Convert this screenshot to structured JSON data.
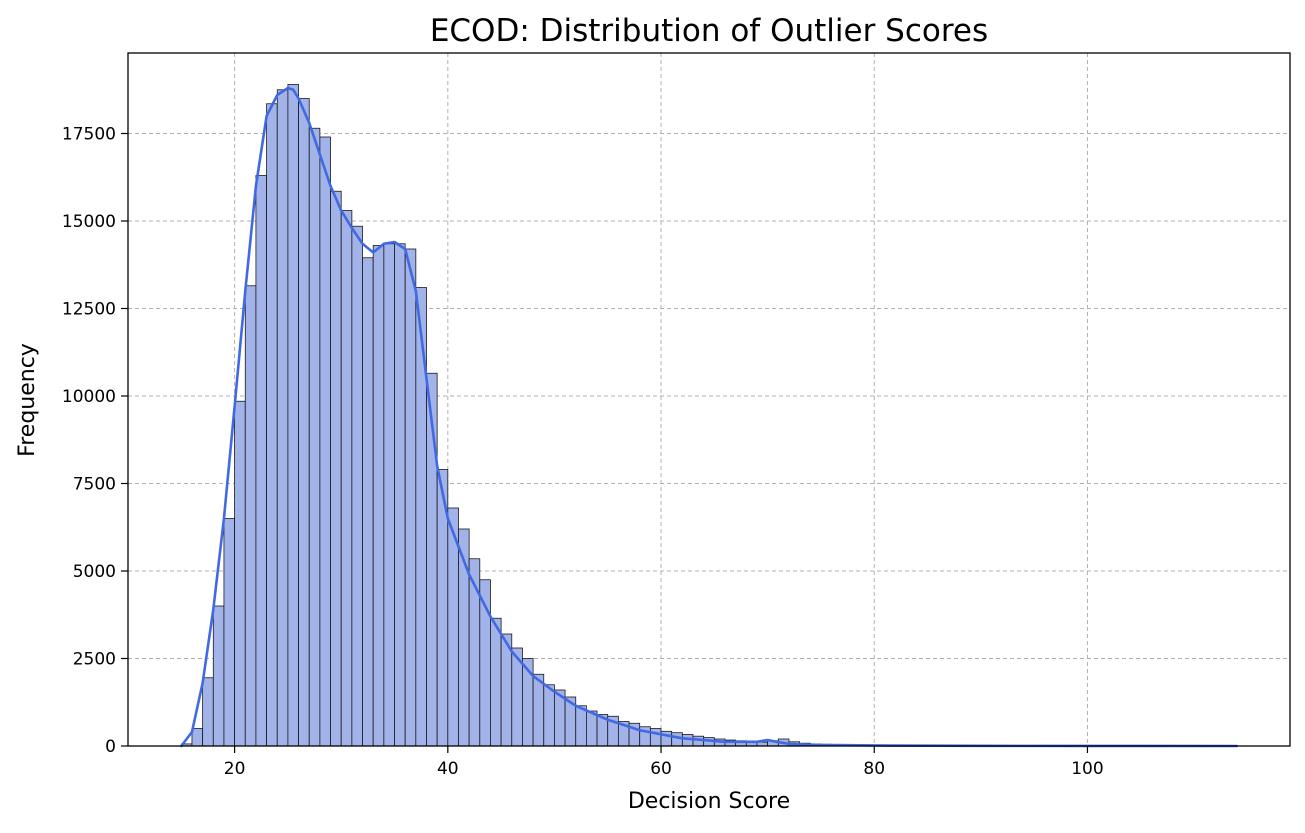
{
  "chart_data": {
    "type": "histogram",
    "title": "ECOD: Distribution of Outlier Scores",
    "xlabel": "Decision Score",
    "ylabel": "Frequency",
    "xlim": [
      10,
      119
    ],
    "ylim": [
      0,
      19800
    ],
    "xticks": [
      20,
      40,
      60,
      80,
      100
    ],
    "yticks": [
      0,
      2500,
      5000,
      7500,
      10000,
      12500,
      15000,
      17500
    ],
    "grid": true,
    "bin_start": 15,
    "bin_width": 1,
    "bin_counts": [
      60,
      500,
      1950,
      4000,
      6500,
      9850,
      13150,
      16300,
      18350,
      18750,
      18900,
      18500,
      17650,
      17400,
      15850,
      15300,
      14850,
      13950,
      14300,
      14350,
      14350,
      14200,
      13100,
      10650,
      7900,
      6800,
      6200,
      5350,
      4750,
      3650,
      3200,
      2800,
      2500,
      2050,
      1750,
      1600,
      1400,
      1150,
      1000,
      900,
      850,
      700,
      650,
      550,
      500,
      420,
      380,
      330,
      280,
      240,
      200,
      170,
      150,
      130,
      110,
      150,
      200,
      120,
      80,
      60,
      50,
      40,
      35,
      30,
      25,
      20,
      18,
      16,
      14,
      12,
      10,
      9,
      8,
      7,
      6,
      5,
      5,
      4,
      4,
      3,
      3,
      3,
      2,
      2,
      2,
      2,
      2,
      1,
      1,
      1,
      1,
      1,
      1,
      1,
      1,
      1,
      1,
      1,
      1
    ],
    "kde": {
      "x": [
        15,
        16,
        17,
        18,
        19,
        20,
        21,
        22,
        23,
        24,
        25,
        25.5,
        26,
        27,
        28,
        29,
        30,
        31,
        32,
        33,
        34,
        35,
        36,
        37,
        38,
        39,
        40,
        42,
        44,
        46,
        48,
        50,
        52,
        55,
        58,
        62,
        66,
        69,
        70,
        71,
        72,
        75,
        80,
        90,
        100,
        114
      ],
      "y": [
        0,
        400,
        1800,
        3900,
        6500,
        9700,
        13000,
        16000,
        18000,
        18600,
        18800,
        18750,
        18500,
        17800,
        16900,
        16000,
        15300,
        14800,
        14350,
        14100,
        14350,
        14400,
        14200,
        13000,
        10500,
        8000,
        6500,
        4900,
        3700,
        2700,
        2000,
        1550,
        1150,
        750,
        450,
        220,
        120,
        120,
        170,
        110,
        60,
        30,
        15,
        5,
        2,
        0
      ]
    }
  }
}
